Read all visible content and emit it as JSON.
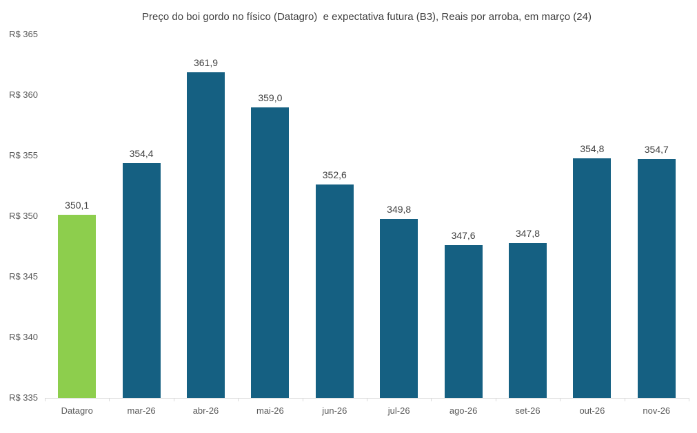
{
  "chart_data": {
    "type": "bar",
    "title": "Preço do boi gordo no físico (Datagro)  e expectativa futura (B3), Reais por arroba, em março (24)",
    "categories": [
      "Datagro",
      "mar-26",
      "abr-26",
      "mai-26",
      "jun-26",
      "jul-26",
      "ago-26",
      "set-26",
      "out-26",
      "nov-26"
    ],
    "values": [
      350.1,
      354.4,
      361.9,
      359.0,
      352.6,
      349.8,
      347.6,
      347.8,
      354.8,
      354.7
    ],
    "value_labels": [
      "350,1",
      "354,4",
      "361,9",
      "359,0",
      "352,6",
      "349,8",
      "347,6",
      "347,8",
      "354,8",
      "354,7"
    ],
    "highlight_index": 0,
    "xlabel": "",
    "ylabel": "",
    "ylim": [
      335,
      365
    ],
    "ytick_step": 5,
    "yticks": [
      {
        "value": 365,
        "label": "R$ 365"
      },
      {
        "value": 360,
        "label": "R$ 360"
      },
      {
        "value": 355,
        "label": "R$ 355"
      },
      {
        "value": 350,
        "label": "R$ 350"
      },
      {
        "value": 345,
        "label": "R$ 345"
      },
      {
        "value": 340,
        "label": "R$ 340"
      },
      {
        "value": 335,
        "label": "R$ 335"
      }
    ],
    "grid": false,
    "legend": "none",
    "colors": {
      "highlight_bar": "#8DCE4D",
      "bar": "#156082",
      "axis_line": "#D9D9D9",
      "title_text": "#404040",
      "tick_text": "#595959",
      "data_label_text": "#404040",
      "background": "#FFFFFF"
    }
  }
}
